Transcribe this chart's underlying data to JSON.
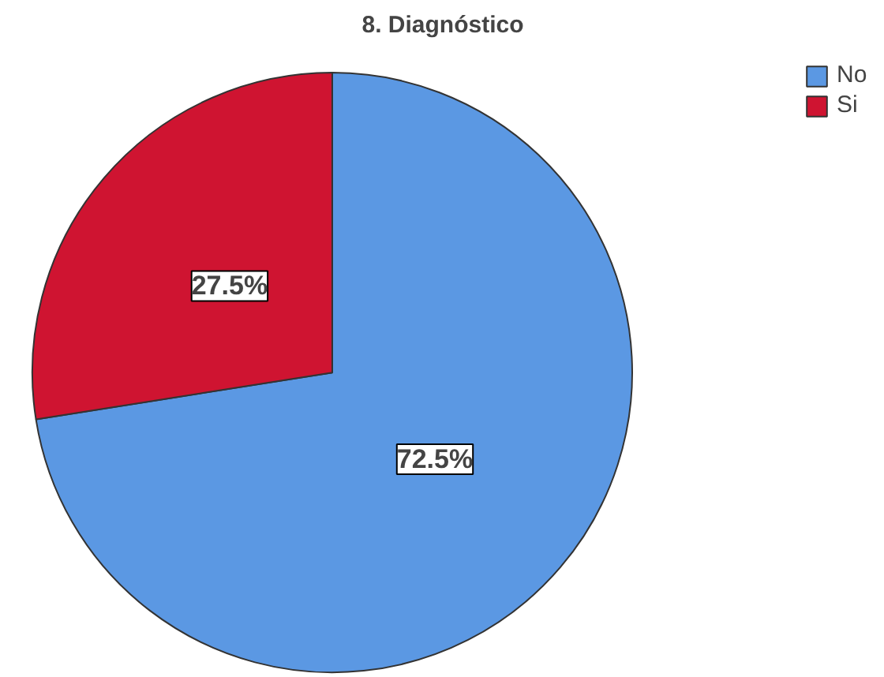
{
  "chart_data": {
    "type": "pie",
    "title": "8. Diagnóstico",
    "categories": [
      "No",
      "Si"
    ],
    "values": [
      72.5,
      27.5
    ],
    "colors": [
      "#5b98e3",
      "#cf1431"
    ],
    "value_labels": [
      "72.5%",
      "27.5%"
    ],
    "legend": "top right"
  }
}
